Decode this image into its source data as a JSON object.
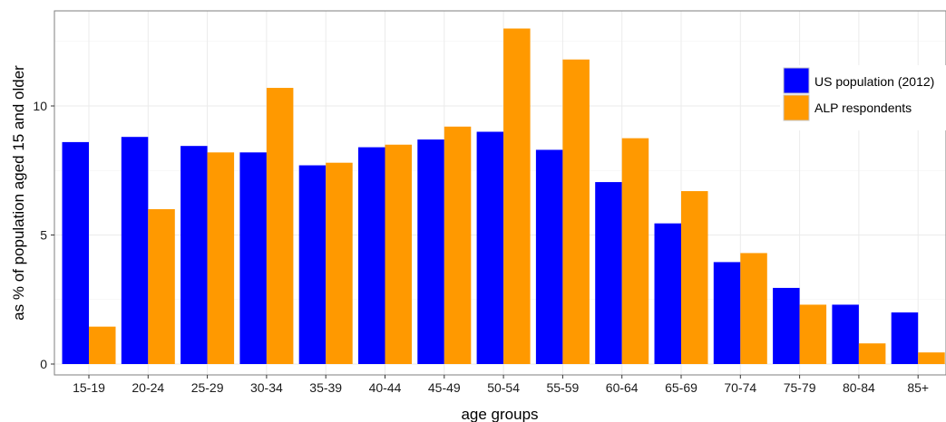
{
  "chart_data": {
    "type": "bar",
    "xlabel": "age groups",
    "ylabel": "as % of population aged 15 and older",
    "ylim": [
      0,
      13.6
    ],
    "yticks": [
      0,
      5,
      10
    ],
    "categories": [
      "15-19",
      "20-24",
      "25-29",
      "30-34",
      "35-39",
      "40-44",
      "45-49",
      "50-54",
      "55-59",
      "60-64",
      "65-69",
      "70-74",
      "75-79",
      "80-84",
      "85+"
    ],
    "series": [
      {
        "name": "US population (2012)",
        "color": "#0000ff",
        "values": [
          8.6,
          8.8,
          8.45,
          8.2,
          7.7,
          8.4,
          8.7,
          9.0,
          8.3,
          7.05,
          5.45,
          3.95,
          2.95,
          2.3,
          2.0
        ]
      },
      {
        "name": "ALP respondents",
        "color": "#ff9900",
        "values": [
          1.45,
          6.0,
          8.2,
          10.7,
          7.8,
          8.5,
          9.2,
          13.0,
          11.8,
          8.75,
          6.7,
          4.3,
          2.3,
          0.8,
          0.45
        ]
      }
    ],
    "grid": true,
    "legend_position": "top-right"
  }
}
